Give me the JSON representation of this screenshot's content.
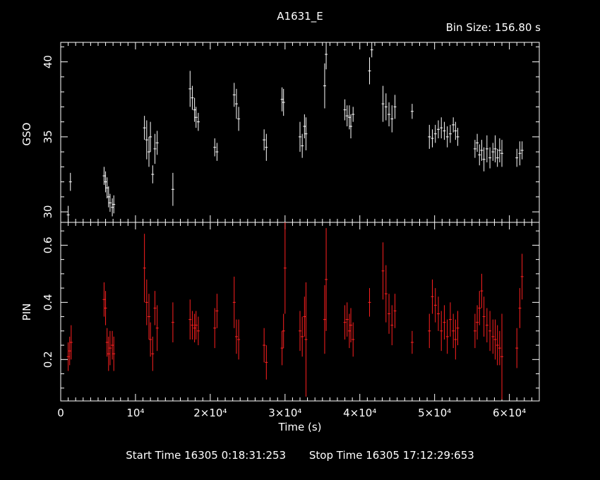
{
  "header": {
    "title": "A1631_E",
    "bin_size": "Bin Size: 156.80 s"
  },
  "footer": {
    "start_time": "Start Time 16305  0:18:31:253",
    "stop_time": "Stop Time 16305 17:12:29:653"
  },
  "colors": {
    "background": "#000000",
    "axes": "#ffffff",
    "gso": "#ffffff",
    "pin": "#ff2020"
  },
  "chart_data": [
    {
      "type": "scatter",
      "ylabel": "GSO",
      "xlim": [
        0,
        64000
      ],
      "ylim": [
        29.3,
        41.3
      ],
      "yticks": [
        "30",
        "35",
        "40"
      ],
      "color": "#ffffff",
      "x": [
        1000,
        1300,
        5800,
        6000,
        6200,
        6400,
        6600,
        6900,
        7100,
        11200,
        11500,
        11800,
        12000,
        12300,
        12600,
        12900,
        15000,
        17300,
        17600,
        17900,
        18100,
        18400,
        20600,
        20900,
        23200,
        23500,
        23800,
        27200,
        27500,
        29600,
        29800,
        32000,
        32300,
        32600,
        32800,
        35300,
        35500,
        38000,
        38300,
        38600,
        38800,
        39100,
        41300,
        41600,
        43100,
        43500,
        43900,
        44300,
        44700,
        47000,
        49300,
        49700,
        50100,
        50500,
        50900,
        51300,
        51700,
        52100,
        52500,
        52800,
        53100,
        55400,
        55700,
        56000,
        56300,
        56600,
        57000,
        57400,
        57800,
        58100,
        58400,
        58700,
        59000,
        61000,
        61400,
        61700
      ],
      "y": [
        29.8,
        32.0,
        32.4,
        32.0,
        31.6,
        31.0,
        30.6,
        30.3,
        30.5,
        35.6,
        34.8,
        34.0,
        35.0,
        32.5,
        34.2,
        34.6,
        31.5,
        38.2,
        37.6,
        36.8,
        36.3,
        36.0,
        34.3,
        34.0,
        37.8,
        37.2,
        36.2,
        34.8,
        34.3,
        37.5,
        37.3,
        35.0,
        34.4,
        35.7,
        35.2,
        38.4,
        40.5,
        36.8,
        36.4,
        36.3,
        35.7,
        36.5,
        39.4,
        40.8,
        37.2,
        37.0,
        36.5,
        36.2,
        37.0,
        36.7,
        35.0,
        34.9,
        35.2,
        35.5,
        35.6,
        35.4,
        35.0,
        35.2,
        35.8,
        35.4,
        35.0,
        34.2,
        34.6,
        33.8,
        34.1,
        33.5,
        34.2,
        33.6,
        34.0,
        34.2,
        33.6,
        34.1,
        33.9,
        33.6,
        33.9,
        34.1
      ],
      "err": [
        0.6,
        0.6,
        0.6,
        0.7,
        0.7,
        0.7,
        0.6,
        0.6,
        0.6,
        0.8,
        1.3,
        1.0,
        1.0,
        0.6,
        1.0,
        0.8,
        1.1,
        1.2,
        0.8,
        0.8,
        0.7,
        0.6,
        0.6,
        0.6,
        0.8,
        1.0,
        0.8,
        0.7,
        0.9,
        0.8,
        0.9,
        1.0,
        0.8,
        0.8,
        1.1,
        1.5,
        1.0,
        0.7,
        0.7,
        0.8,
        0.8,
        0.5,
        0.9,
        0.5,
        1.2,
        0.9,
        0.8,
        0.9,
        0.8,
        0.5,
        0.8,
        0.6,
        0.6,
        0.6,
        0.7,
        0.6,
        0.7,
        0.6,
        0.5,
        0.6,
        0.6,
        0.6,
        0.6,
        0.7,
        0.7,
        0.8,
        0.9,
        0.7,
        0.6,
        0.9,
        0.6,
        0.8,
        0.9,
        0.6,
        0.8,
        0.6
      ]
    },
    {
      "type": "scatter",
      "ylabel": "PIN",
      "xlabel": "Time (s)",
      "xlim": [
        0,
        64000
      ],
      "ylim": [
        0.055,
        0.68
      ],
      "yticks": [
        "0.2",
        "0.4",
        "0.6"
      ],
      "xticks": [
        {
          "value": 10000,
          "label": "10⁴"
        },
        {
          "value": 20000,
          "label": "2×10⁴"
        },
        {
          "value": 30000,
          "label": "3×10⁴"
        },
        {
          "value": 40000,
          "label": "4×10⁴"
        },
        {
          "value": 50000,
          "label": "5×10⁴"
        },
        {
          "value": 60000,
          "label": "6×10⁴"
        }
      ],
      "color": "#ff2020",
      "x": [
        1000,
        1200,
        1400,
        5800,
        6000,
        6200,
        6400,
        6600,
        6900,
        7100,
        11200,
        11500,
        11800,
        12000,
        12300,
        12600,
        12900,
        15000,
        17300,
        17600,
        17900,
        18100,
        18400,
        20600,
        20900,
        23200,
        23500,
        23800,
        27200,
        27500,
        29600,
        29800,
        30000,
        32000,
        32300,
        32600,
        32800,
        35300,
        35500,
        38000,
        38300,
        38600,
        38800,
        39100,
        41300,
        43100,
        43500,
        43900,
        44300,
        44700,
        47000,
        49300,
        49700,
        50100,
        50500,
        50900,
        51300,
        51700,
        52100,
        52500,
        52800,
        53100,
        55400,
        55700,
        56000,
        56300,
        56600,
        57000,
        57400,
        57800,
        58100,
        58400,
        58700,
        59000,
        61000,
        61400,
        61700
      ],
      "y": [
        0.21,
        0.23,
        0.26,
        0.41,
        0.38,
        0.26,
        0.22,
        0.24,
        0.25,
        0.22,
        0.52,
        0.4,
        0.35,
        0.27,
        0.22,
        0.38,
        0.31,
        0.33,
        0.34,
        0.32,
        0.31,
        0.32,
        0.3,
        0.31,
        0.37,
        0.4,
        0.28,
        0.27,
        0.25,
        0.19,
        0.24,
        0.3,
        0.52,
        0.3,
        0.28,
        0.35,
        0.27,
        0.34,
        0.48,
        0.33,
        0.34,
        0.3,
        0.32,
        0.27,
        0.4,
        0.51,
        0.43,
        0.36,
        0.32,
        0.37,
        0.26,
        0.3,
        0.42,
        0.39,
        0.36,
        0.3,
        0.33,
        0.28,
        0.34,
        0.3,
        0.27,
        0.31,
        0.3,
        0.33,
        0.38,
        0.44,
        0.35,
        0.32,
        0.3,
        0.28,
        0.27,
        0.25,
        0.24,
        0.21,
        0.24,
        0.38,
        0.49
      ],
      "err": [
        0.05,
        0.05,
        0.06,
        0.06,
        0.06,
        0.05,
        0.06,
        0.06,
        0.05,
        0.06,
        0.12,
        0.08,
        0.08,
        0.06,
        0.06,
        0.06,
        0.08,
        0.07,
        0.07,
        0.05,
        0.05,
        0.05,
        0.05,
        0.07,
        0.06,
        0.09,
        0.06,
        0.07,
        0.06,
        0.06,
        0.06,
        0.06,
        0.16,
        0.07,
        0.07,
        0.07,
        0.2,
        0.12,
        0.18,
        0.06,
        0.06,
        0.06,
        0.06,
        0.06,
        0.05,
        0.1,
        0.1,
        0.07,
        0.07,
        0.06,
        0.04,
        0.06,
        0.06,
        0.06,
        0.06,
        0.07,
        0.06,
        0.06,
        0.06,
        0.06,
        0.07,
        0.06,
        0.06,
        0.06,
        0.06,
        0.06,
        0.07,
        0.06,
        0.07,
        0.06,
        0.07,
        0.07,
        0.06,
        0.15,
        0.07,
        0.07,
        0.08
      ]
    }
  ]
}
